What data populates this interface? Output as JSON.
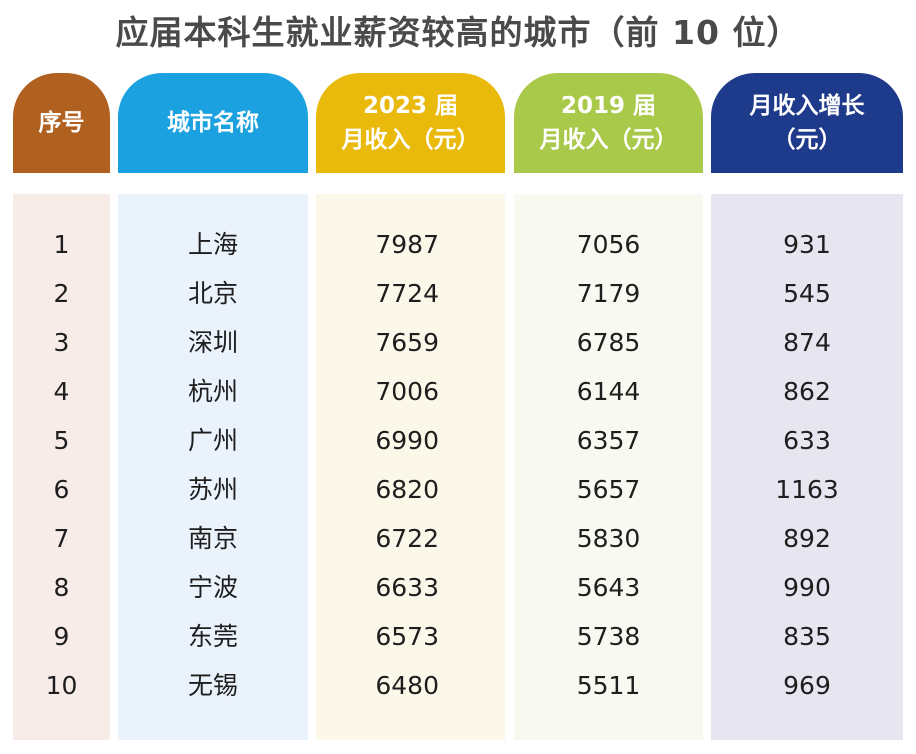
{
  "title": "应届本科生就业薪资较高的城市（前 10 位）",
  "columns": [
    {
      "key": "rank",
      "line1": "序号",
      "line2": "",
      "color": "#b0601f",
      "body": "#f7ece8"
    },
    {
      "key": "city",
      "line1": "城市名称",
      "line2": "",
      "color": "#1ba0e0",
      "body": "#eaf2fb"
    },
    {
      "key": "s2023",
      "line1": "2023 届",
      "line2": "月收入（元）",
      "color": "#e9b90c",
      "body": "#fbf8ea"
    },
    {
      "key": "s2019",
      "line1": "2019 届",
      "line2": "月收入（元）",
      "color": "#a9c94a",
      "body": "#f8f9f1"
    },
    {
      "key": "growth",
      "line1": "月收入增长",
      "line2": "（元）",
      "color": "#1e3a8a",
      "body": "#e6e5f0"
    }
  ],
  "rows": [
    {
      "rank": "1",
      "city": "上海",
      "s2023": "7987",
      "s2019": "7056",
      "growth": "931"
    },
    {
      "rank": "2",
      "city": "北京",
      "s2023": "7724",
      "s2019": "7179",
      "growth": "545"
    },
    {
      "rank": "3",
      "city": "深圳",
      "s2023": "7659",
      "s2019": "6785",
      "growth": "874"
    },
    {
      "rank": "4",
      "city": "杭州",
      "s2023": "7006",
      "s2019": "6144",
      "growth": "862"
    },
    {
      "rank": "5",
      "city": "广州",
      "s2023": "6990",
      "s2019": "6357",
      "growth": "633"
    },
    {
      "rank": "6",
      "city": "苏州",
      "s2023": "6820",
      "s2019": "5657",
      "growth": "1163"
    },
    {
      "rank": "7",
      "city": "南京",
      "s2023": "6722",
      "s2019": "5830",
      "growth": "892"
    },
    {
      "rank": "8",
      "city": "宁波",
      "s2023": "6633",
      "s2019": "5643",
      "growth": "990"
    },
    {
      "rank": "9",
      "city": "东莞",
      "s2023": "6573",
      "s2019": "5738",
      "growth": "835"
    },
    {
      "rank": "10",
      "city": "无锡",
      "s2023": "6480",
      "s2019": "5511",
      "growth": "969"
    }
  ],
  "chart_data": {
    "type": "table",
    "title": "应届本科生就业薪资较高的城市（前 10 位）",
    "columns": [
      "序号",
      "城市名称",
      "2023 届月收入（元）",
      "2019 届月收入（元）",
      "月收入增长（元）"
    ],
    "categories": [
      "上海",
      "北京",
      "深圳",
      "杭州",
      "广州",
      "苏州",
      "南京",
      "宁波",
      "东莞",
      "无锡"
    ],
    "series": [
      {
        "name": "2023 届月收入（元）",
        "values": [
          7987,
          7724,
          7659,
          7006,
          6990,
          6820,
          6722,
          6633,
          6573,
          6480
        ]
      },
      {
        "name": "2019 届月收入（元）",
        "values": [
          7056,
          7179,
          6785,
          6144,
          6357,
          5657,
          5830,
          5643,
          5738,
          5511
        ]
      },
      {
        "name": "月收入增长（元）",
        "values": [
          931,
          545,
          874,
          862,
          633,
          1163,
          892,
          990,
          835,
          969
        ]
      }
    ]
  }
}
